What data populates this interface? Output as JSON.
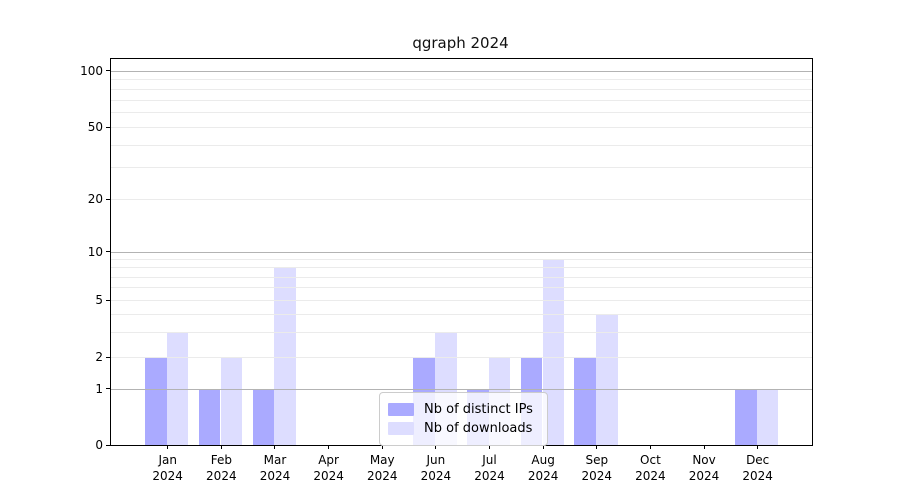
{
  "title": "qgraph 2024",
  "legend": {
    "items": [
      {
        "label": "Nb of distinct IPs",
        "color": "#aaaaff"
      },
      {
        "label": "Nb of downloads",
        "color": "#ddddff"
      }
    ]
  },
  "axes": {
    "y_tick_labels": [
      "0",
      "1",
      "2",
      "5",
      "10",
      "20",
      "50",
      "100"
    ],
    "y_tick_values": [
      0,
      1,
      2,
      5,
      10,
      20,
      50,
      100
    ],
    "y_major_gridlines": [
      1,
      10,
      100
    ],
    "y_minor_gridlines": [
      2,
      3,
      4,
      5,
      6,
      7,
      8,
      9,
      20,
      30,
      40,
      50,
      60,
      70,
      80,
      90
    ],
    "x_tick_months": [
      "Jan",
      "Feb",
      "Mar",
      "Apr",
      "May",
      "Jun",
      "Jul",
      "Aug",
      "Sep",
      "Oct",
      "Nov",
      "Dec"
    ],
    "x_tick_year": "2024"
  },
  "chart_data": {
    "type": "bar",
    "title": "qgraph 2024",
    "categories": [
      "Jan 2024",
      "Feb 2024",
      "Mar 2024",
      "Apr 2024",
      "May 2024",
      "Jun 2024",
      "Jul 2024",
      "Aug 2024",
      "Sep 2024",
      "Oct 2024",
      "Nov 2024",
      "Dec 2024"
    ],
    "series": [
      {
        "name": "Nb of distinct IPs",
        "color": "#aaaaff",
        "values": [
          2,
          1,
          1,
          0,
          0,
          2,
          1,
          2,
          2,
          0,
          0,
          1
        ]
      },
      {
        "name": "Nb of downloads",
        "color": "#ddddff",
        "values": [
          3,
          2,
          8,
          0,
          0,
          3,
          2,
          9,
          4,
          0,
          0,
          1
        ]
      }
    ],
    "xlabel": "",
    "ylabel": "",
    "yscale": "log-like with 0 baseline",
    "y_ticks": [
      0,
      1,
      2,
      5,
      10,
      20,
      50,
      100
    ],
    "ylim": [
      0,
      115
    ],
    "grid": true,
    "legend_position": "lower center"
  }
}
